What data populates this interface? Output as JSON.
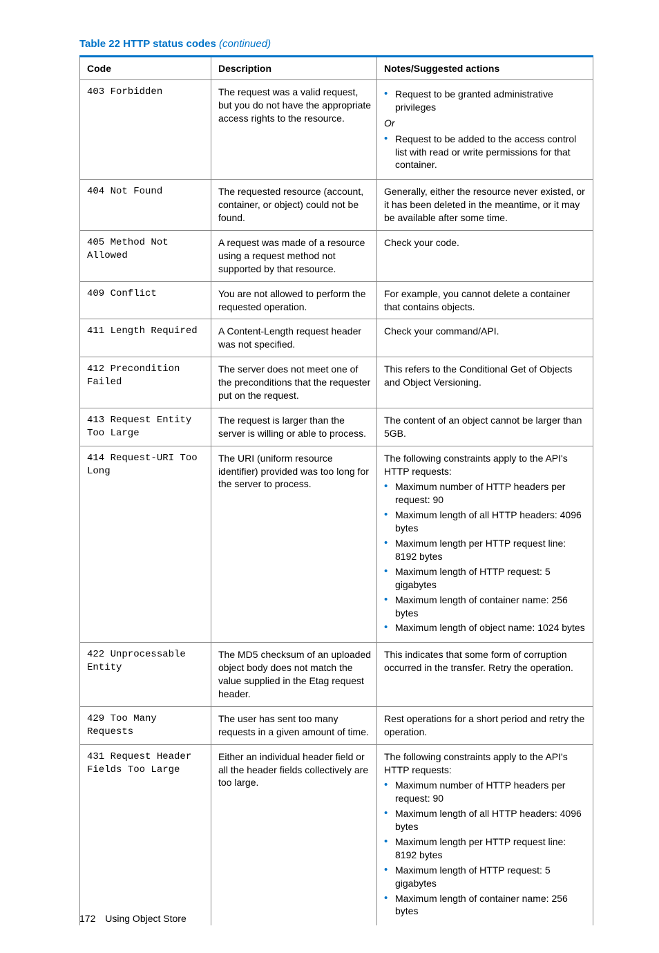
{
  "title_prefix": "Table 22 HTTP status codes ",
  "title_suffix": "(continued)",
  "columns": [
    "Code",
    "Description",
    "Notes/Suggested actions"
  ],
  "footer_page": "172",
  "footer_section": "Using Object Store",
  "colors": {
    "accent": "#0073c8",
    "border": "#888888",
    "text": "#000000",
    "background": "#ffffff"
  },
  "rows": [
    {
      "code": "403 Forbidden",
      "desc": "The request was a valid request, but you do not have the appropriate access rights to the resource.",
      "notes_intro": "",
      "notes_bullets_a": [
        "Request to be granted administrative privileges"
      ],
      "notes_or": "Or",
      "notes_bullets_b": [
        "Request to be added to the access control list with read or write permissions for that container."
      ]
    },
    {
      "code": "404 Not Found",
      "desc": "The requested resource (account, container, or object) could not be found.",
      "notes_plain": "Generally, either the resource never existed, or it has been deleted in the meantime, or it may be available after some time."
    },
    {
      "code": "405 Method Not Allowed",
      "desc": "A request was made of a resource using a request method not supported by that resource.",
      "notes_plain": "Check your code."
    },
    {
      "code": "409 Conflict",
      "desc": "You are not allowed to perform the requested operation.",
      "notes_plain": "For example, you cannot delete a container that contains objects."
    },
    {
      "code": "411 Length Required",
      "desc": "A Content-Length request header was not specified.",
      "notes_plain": "Check your command/API."
    },
    {
      "code": "412 Precondition Failed",
      "desc": "The server does not meet one of the preconditions that the requester put on the request.",
      "notes_plain": "This refers to the Conditional Get of Objects and Object Versioning."
    },
    {
      "code": "413 Request Entity Too Large",
      "desc": "The request is larger than the server is willing or able to process.",
      "notes_plain": "The content of an object cannot be larger than 5GB."
    },
    {
      "code": "414 Request-URI Too Long",
      "desc": "The URI (uniform resource identifier) provided was too long for the server to process.",
      "notes_intro": "The following constraints apply to the API's HTTP requests:",
      "notes_bullets": [
        "Maximum number of HTTP headers per request: 90",
        "Maximum length of all HTTP headers: 4096 bytes",
        "Maximum length per HTTP request line: 8192 bytes",
        "Maximum length of HTTP request: 5 gigabytes",
        "Maximum length of container name: 256 bytes",
        "Maximum length of object name: 1024 bytes"
      ]
    },
    {
      "code": "422 Unprocessable Entity",
      "desc": "The MD5 checksum of an uploaded object body does not match the value supplied in the Etag request header.",
      "notes_plain": "This indicates that some form of corruption occurred in the transfer. Retry the operation."
    },
    {
      "code": "429 Too Many Requests",
      "desc": "The user has sent too many requests in a given amount of time.",
      "notes_plain": "Rest operations for a short period and retry the operation."
    },
    {
      "code": "431 Request Header Fields Too Large",
      "desc": "Either an individual header field or all the header fields collectively are too large.",
      "notes_intro": "The following constraints apply to the API's HTTP requests:",
      "notes_bullets": [
        "Maximum number of HTTP headers per request: 90",
        "Maximum length of all HTTP headers: 4096 bytes",
        "Maximum length per HTTP request line: 8192 bytes",
        "Maximum length of HTTP request: 5 gigabytes",
        "Maximum length of container name: 256 bytes"
      ]
    }
  ]
}
